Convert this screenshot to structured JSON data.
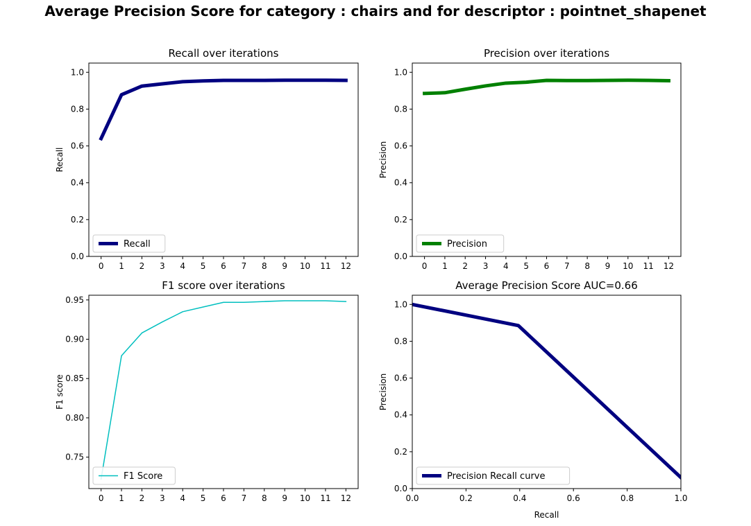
{
  "figure": {
    "suptitle": "Average Precision Score for category : chairs and for descriptor : pointnet_shapenet"
  },
  "chart_data": [
    {
      "type": "line",
      "title": "Recall over iterations",
      "xlabel": "",
      "ylabel": "Recall",
      "x": [
        0,
        1,
        2,
        3,
        4,
        5,
        6,
        7,
        8,
        9,
        10,
        11,
        12
      ],
      "xticks": [
        "0",
        "1",
        "2",
        "3",
        "4",
        "5",
        "6",
        "7",
        "8",
        "9",
        "10",
        "11",
        "12"
      ],
      "xlim": [
        -0.6,
        12.6
      ],
      "ylim": [
        0,
        1.05
      ],
      "yticks": [
        0,
        0.2,
        0.4,
        0.6,
        0.8,
        1.0
      ],
      "ytick_labels": [
        "0.0",
        "0.2",
        "0.4",
        "0.6",
        "0.8",
        "1.0"
      ],
      "series": [
        {
          "name": "Recall",
          "color": "#000080",
          "linewidth": 5,
          "values": [
            0.64,
            0.878,
            0.925,
            0.937,
            0.949,
            0.953,
            0.956,
            0.956,
            0.956,
            0.957,
            0.957,
            0.957,
            0.956
          ]
        }
      ],
      "legend": "lower left",
      "grid": false
    },
    {
      "type": "line",
      "title": "Precision over iterations",
      "xlabel": "",
      "ylabel": "Precision",
      "x": [
        0,
        1,
        2,
        3,
        4,
        5,
        6,
        7,
        8,
        9,
        10,
        11,
        12
      ],
      "xticks": [
        "0",
        "1",
        "2",
        "3",
        "4",
        "5",
        "6",
        "7",
        "8",
        "9",
        "10",
        "11",
        "12"
      ],
      "xlim": [
        -0.6,
        12.6
      ],
      "ylim": [
        0,
        1.05
      ],
      "yticks": [
        0,
        0.2,
        0.4,
        0.6,
        0.8,
        1.0
      ],
      "ytick_labels": [
        "0.0",
        "0.2",
        "0.4",
        "0.6",
        "0.8",
        "1.0"
      ],
      "series": [
        {
          "name": "Precision",
          "color": "#008000",
          "linewidth": 5,
          "values": [
            0.885,
            0.889,
            0.908,
            0.926,
            0.941,
            0.946,
            0.956,
            0.955,
            0.955,
            0.956,
            0.957,
            0.956,
            0.954
          ]
        }
      ],
      "legend": "lower left",
      "grid": false
    },
    {
      "type": "line",
      "title": "F1 score over iterations",
      "xlabel": "",
      "ylabel": "F1 score",
      "x": [
        0,
        1,
        2,
        3,
        4,
        5,
        6,
        7,
        8,
        9,
        10,
        11,
        12
      ],
      "xticks": [
        "0",
        "1",
        "2",
        "3",
        "4",
        "5",
        "6",
        "7",
        "8",
        "9",
        "10",
        "11",
        "12"
      ],
      "xlim": [
        -0.6,
        12.6
      ],
      "ylim": [
        0.71,
        0.956
      ],
      "yticks": [
        0.75,
        0.8,
        0.85,
        0.9,
        0.95
      ],
      "ytick_labels": [
        "0.75",
        "0.80",
        "0.85",
        "0.90",
        "0.95"
      ],
      "series": [
        {
          "name": "F1 Score",
          "color": "#00bfbf",
          "linewidth": 1.5,
          "values": [
            0.722,
            0.879,
            0.908,
            0.922,
            0.935,
            0.941,
            0.947,
            0.947,
            0.948,
            0.949,
            0.949,
            0.949,
            0.948
          ]
        }
      ],
      "legend": "lower left",
      "grid": false
    },
    {
      "type": "line",
      "title": "Average Precision Score AUC=0.66",
      "xlabel": "Recall",
      "ylabel": "Precision",
      "xlim": [
        0,
        1
      ],
      "ylim": [
        0,
        1.05
      ],
      "xticks_values": [
        0,
        0.2,
        0.4,
        0.6,
        0.8,
        1.0
      ],
      "xticks": [
        "0.0",
        "0.2",
        "0.4",
        "0.6",
        "0.8",
        "1.0"
      ],
      "yticks": [
        0,
        0.2,
        0.4,
        0.6,
        0.8,
        1.0
      ],
      "ytick_labels": [
        "0.0",
        "0.2",
        "0.4",
        "0.6",
        "0.8",
        "1.0"
      ],
      "series": [
        {
          "name": "Precision Recall curve",
          "color": "#000080",
          "linewidth": 5,
          "x": [
            0,
            0.395,
            1.0
          ],
          "values": [
            1.0,
            0.885,
            0.06
          ]
        }
      ],
      "legend": "lower left",
      "grid": false
    }
  ]
}
